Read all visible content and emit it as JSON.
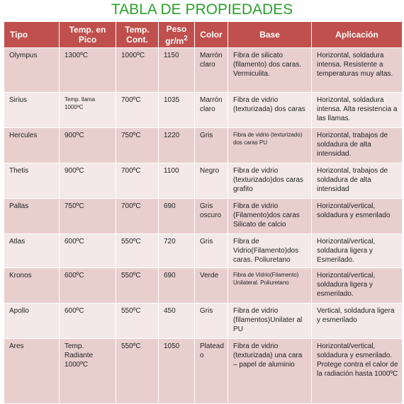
{
  "title": "TABLA DE PROPIEDADES",
  "headers": {
    "tipo": "Tipo",
    "pico": "Temp. en Pico",
    "cont": "Temp. Cont.",
    "peso_a": "Peso",
    "peso_b": "gr/m",
    "peso_sup": "2",
    "color": "Color",
    "base": "Base",
    "aplicacion": "Aplicación"
  },
  "rows": [
    {
      "tipo": "Olympus",
      "pico": "1300ºC",
      "cont": "1000ºC",
      "peso": "1150",
      "color": "Marrón claro",
      "base": "Fibra de silicato (filamento) dos caras. Vermiculita.",
      "aplicacion": "Horizontal, soldadura intensa. Resistente a temperaturas muy altas."
    },
    {
      "tipo": "Sirius",
      "pico": "Temp. llama 1000ºC",
      "cont": "700ºC",
      "peso": "1035",
      "color": "Marrón claro",
      "base": "Fibra de vidrio (texturizada) dos caras",
      "aplicacion": "Horizontal, soldadura intensa. Alta resistencia a las llamas."
    },
    {
      "tipo": "Hercules",
      "pico": "900ºC",
      "cont": "750ºC",
      "peso": "1220",
      "color": "Gris",
      "base": "Fibra de vidrio (texturizado) dos caras PU",
      "aplicacion": "Horizontal,  trabajos de soldadura de alta intensidad."
    },
    {
      "tipo": "Thetis",
      "pico": "900ºC",
      "cont": "700ºC",
      "peso": "1100",
      "color": "Negro",
      "base": "Fibra de vidrio (texturizado)dos caras grafito",
      "aplicacion": "Horizontal, trabajos de soldadura de alta intensidad"
    },
    {
      "tipo": "Pallas",
      "pico": "750ºC",
      "cont": "700ºC",
      "peso": "690",
      "color": "Gris oscuro",
      "base": "Fibra de vidrio (Filamento)dos caras Silicato de calcio",
      "aplicacion": "Horizontal/vertical, soldadura y esmerilado"
    },
    {
      "tipo": "Atlas",
      "pico": "600ºC",
      "cont": "550ºC",
      "peso": "720",
      "color": "Gris",
      "base": "Fibra de Vidrio(Filamento)dos caras. Poliuretano",
      "aplicacion": "Horizontal/vertical, soldadura ligera y Esmerilado."
    },
    {
      "tipo": "Kronos",
      "pico": "600ºC",
      "cont": "550ºC",
      "peso": "690",
      "color": "Verde",
      "base": "Fibra de Vidrio(Filamento) Unilateral. Poliuretano",
      "aplicacion": "Horizontal/vertical, soldadura ligera y esmerilado."
    },
    {
      "tipo": "Apollo",
      "pico": "600ºC",
      "cont": "550ºC",
      "peso": "450",
      "color": "Gris",
      "base": "Fibra de vidrio (filamentos)Unilater al PU",
      "aplicacion": "Vertical, soldadura ligera y esmerilado"
    },
    {
      "tipo": "Ares",
      "pico": "Temp. Radiante 1000ºC",
      "cont": "550ºC",
      "peso": "1050",
      "color": "Plateado",
      "base": "Fibra de vidrio (texturizada) una cara – papel de aluminio",
      "aplicacion": "Horizontal/vertical, soldadura y esmerilado. Protege contra el calor de la radiación hasta 1000ºC"
    }
  ]
}
